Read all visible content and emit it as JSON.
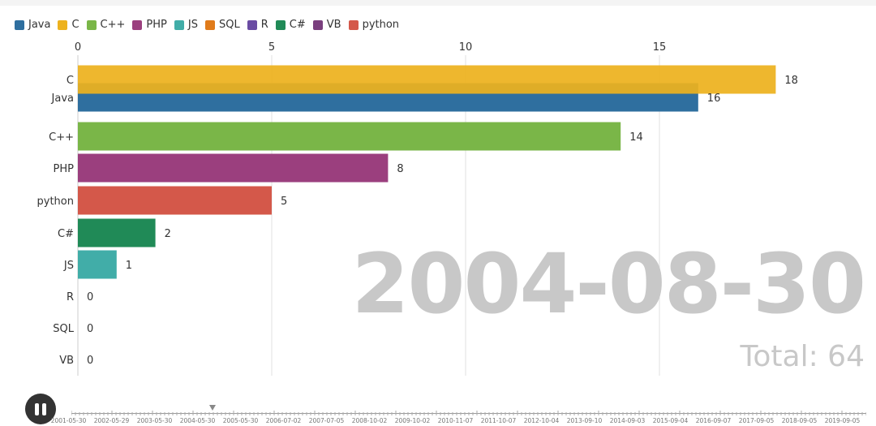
{
  "legend": [
    {
      "label": "Java",
      "color": "#2f6f9f"
    },
    {
      "label": "C",
      "color": "#edb21e"
    },
    {
      "label": "C++",
      "color": "#7ab648"
    },
    {
      "label": "PHP",
      "color": "#9b3f7e"
    },
    {
      "label": "JS",
      "color": "#41ada8"
    },
    {
      "label": "SQL",
      "color": "#e07b1a"
    },
    {
      "label": "R",
      "color": "#6a4ca3"
    },
    {
      "label": "C#",
      "color": "#208a57"
    },
    {
      "label": "VB",
      "color": "#7a3f7e"
    },
    {
      "label": "python",
      "color": "#d4584a"
    }
  ],
  "chart_data": {
    "type": "bar",
    "orientation": "horizontal",
    "xlim": [
      0,
      18
    ],
    "x_ticks": [
      0,
      5,
      10,
      15
    ],
    "grid": true,
    "categories": [
      "C",
      "Java",
      "C++",
      "PHP",
      "python",
      "C#",
      "JS",
      "R",
      "SQL",
      "VB"
    ],
    "values": [
      18,
      16,
      14,
      8,
      5,
      2,
      1,
      0,
      0,
      0
    ],
    "colors": [
      "#edb21e",
      "#2f6f9f",
      "#7ab648",
      "#9b3f7e",
      "#d4584a",
      "#208a57",
      "#41ada8",
      "#6a4ca3",
      "#e07b1a",
      "#7a3f7e"
    ]
  },
  "date": "2004-08-30",
  "total_label": "Total: 64",
  "timeline": {
    "labels": [
      "2001-05-30",
      "2002-05-29",
      "2003-05-30",
      "2004-05-30",
      "2005-05-30",
      "2006-07-02",
      "2007-07-05",
      "2008-10-02",
      "2009-10-02",
      "2010-11-07",
      "2011-10-07",
      "2012-10-04",
      "2013-09-10",
      "2014-09-03",
      "2015-09-04",
      "2016-09-07",
      "2017-09-05",
      "2018-09-05",
      "2019-09-05"
    ],
    "current_position": 0.178
  },
  "controls": {
    "play_state": "pause-icon"
  }
}
